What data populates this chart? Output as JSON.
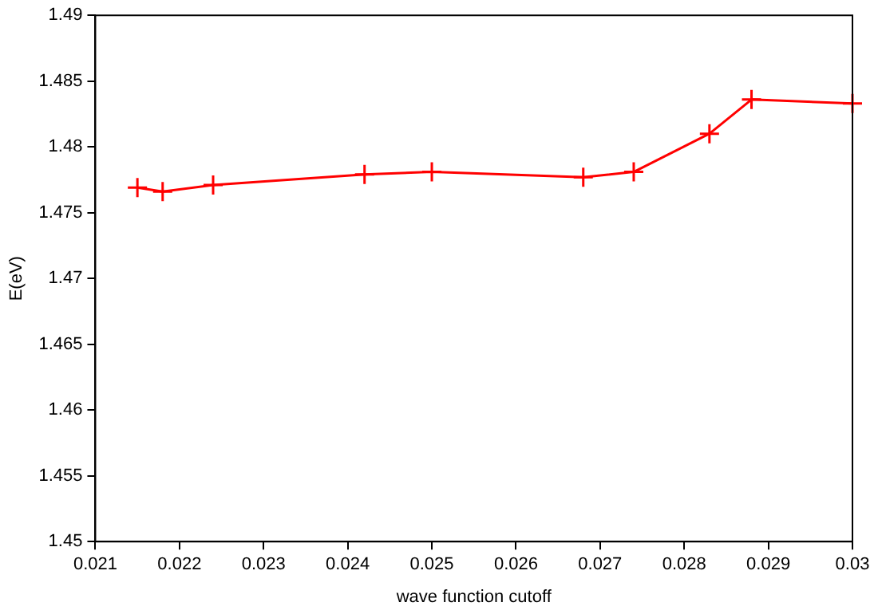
{
  "chart_data": {
    "type": "line",
    "xlabel": "wave function cutoff",
    "ylabel": "E(eV)",
    "x": [
      0.0215,
      0.0218,
      0.0224,
      0.0242,
      0.025,
      0.0268,
      0.0274,
      0.0283,
      0.0288,
      0.03
    ],
    "series": [
      {
        "color": "#ff0000",
        "values": [
          1.4769,
          1.4766,
          1.4771,
          1.4779,
          1.4781,
          1.4777,
          1.4781,
          1.481,
          1.4836,
          1.4833
        ]
      }
    ],
    "xlim": [
      0.021,
      0.03
    ],
    "xticks": [
      0.021,
      0.022,
      0.023,
      0.024,
      0.025,
      0.026,
      0.027,
      0.028,
      0.029,
      0.03
    ],
    "ylim": [
      1.45,
      1.49
    ],
    "yticks": [
      1.45,
      1.455,
      1.46,
      1.465,
      1.47,
      1.475,
      1.48,
      1.485,
      1.49
    ],
    "grid": false,
    "legend": false,
    "marker": "cross",
    "line_style": "solid"
  }
}
